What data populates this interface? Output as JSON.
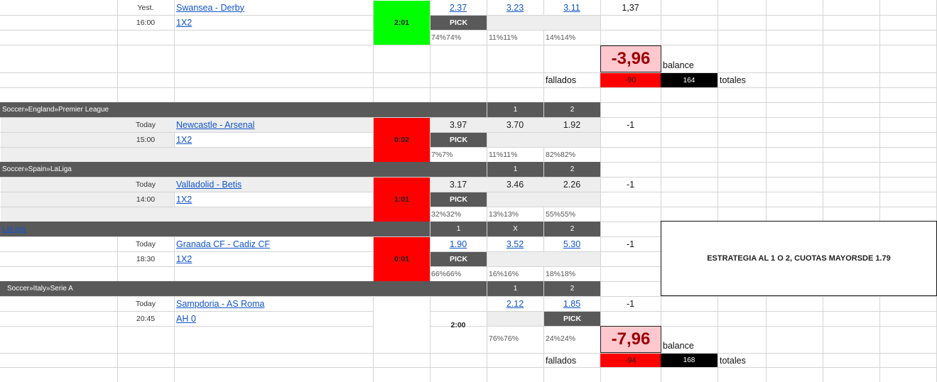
{
  "match_swansea": {
    "date": "Yest.",
    "time": "16:00",
    "teams": "Swansea - Derby",
    "market": "1X2",
    "score": "2:01",
    "odds": [
      "2.37",
      "3.23",
      "3.11"
    ],
    "pick_label": "PICK",
    "pcts": [
      "74%74%",
      "11%11%",
      "14%14%"
    ],
    "result_value": "1,37"
  },
  "summary1": {
    "balance": "-3,96",
    "balance_label": "balance",
    "fallados_label": "fallados",
    "fallados": "-90",
    "totales": "164",
    "totales_label": "totales"
  },
  "section_pl": {
    "league": "Soccer»England»Premier League",
    "col1": "1",
    "col2": "2"
  },
  "match_newcastle": {
    "date": "Today",
    "time": "15:00",
    "teams": "Newcastle - Arsenal",
    "market": "1X2",
    "score": "0:02",
    "odds": [
      "3.97",
      "3.70",
      "1.92"
    ],
    "pick_label": "PICK",
    "pcts": [
      "7%7%",
      "11%11%",
      "82%82%"
    ],
    "result_value": "-1"
  },
  "section_laliga": {
    "league": "Soccer»Spain»LaLiga",
    "col1": "1",
    "col2": "2"
  },
  "match_valladolid": {
    "date": "Today",
    "time": "14:00",
    "teams": "Valladolid - Betis",
    "market": "1X2",
    "score": "1:01",
    "odds": [
      "3.17",
      "3.46",
      "2.26"
    ],
    "pick_label": "PICK",
    "pcts": [
      "32%32%",
      "13%13%",
      "55%55%"
    ],
    "result_value": "-1"
  },
  "section_laliga2": {
    "league": "LaLiga",
    "col1": "1",
    "colx": "X",
    "col2": "2"
  },
  "match_granada": {
    "date": "Today",
    "time": "18:30",
    "teams": "Granada CF - Cadiz CF",
    "market": "1X2",
    "score": "0:01",
    "odds": [
      "1.90",
      "3.52",
      "5.30"
    ],
    "pick_label": "PICK",
    "pcts": [
      "66%66%",
      "16%16%",
      "18%18%"
    ],
    "result_value": "-1"
  },
  "strategy_note": "ESTRATEGIA AL 1 O 2, CUOTAS MAYORSDE 1.79",
  "section_seriea": {
    "league": "Soccer»Italy»Serie A",
    "col1": "1",
    "col2": "2"
  },
  "match_sampdoria": {
    "date": "Today",
    "time": "20:45",
    "teams": "Sampdoria - AS Roma",
    "market": "AH 0",
    "score": "2:00",
    "odds": [
      "2.12",
      "1.85"
    ],
    "pick_label": "PICK",
    "pcts": [
      "76%76%",
      "24%24%"
    ],
    "result_value": "-1"
  },
  "summary2": {
    "balance": "-7,96",
    "balance_label": "balance",
    "fallados_label": "fallados",
    "fallados": "-94",
    "totales": "168",
    "totales_label": "totales"
  },
  "colors": {
    "win": "#00ff00",
    "loss": "#ff0000",
    "header": "#595959",
    "balance_bg": "#ffc7ce",
    "balance_text": "#9c0006"
  }
}
